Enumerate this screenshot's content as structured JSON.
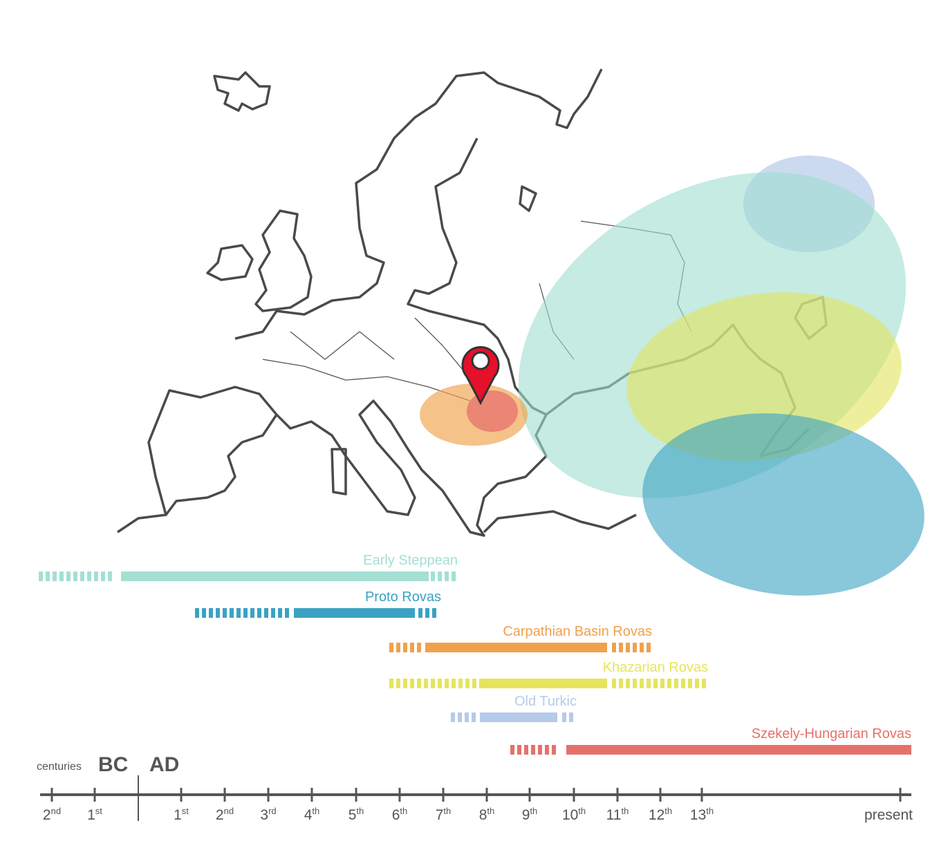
{
  "timelines": [
    {
      "label": "Early Steppean",
      "color": "#a3e0d3"
    },
    {
      "label": "Proto Rovas",
      "color": "#3ba1c3"
    },
    {
      "label": "Carpathian Basin Rovas",
      "color": "#f0a14c"
    },
    {
      "label": "Khazarian Rovas",
      "color": "#e6e45c"
    },
    {
      "label": "Old Turkic",
      "color": "#b6caea"
    },
    {
      "label": "Szekely-Hungarian Rovas",
      "color": "#e5716b"
    }
  ],
  "axis": {
    "unit": "centuries",
    "bc": "BC",
    "ad": "AD",
    "ticks": [
      {
        "number": "2",
        "suffix": "nd"
      },
      {
        "number": "1",
        "suffix": "st"
      },
      {
        "number": "1",
        "suffix": "st"
      },
      {
        "number": "2",
        "suffix": "nd"
      },
      {
        "number": "3",
        "suffix": "rd"
      },
      {
        "number": "4",
        "suffix": "th"
      },
      {
        "number": "5",
        "suffix": "th"
      },
      {
        "number": "6",
        "suffix": "th"
      },
      {
        "number": "7",
        "suffix": "th"
      },
      {
        "number": "8",
        "suffix": "th"
      },
      {
        "number": "9",
        "suffix": "th"
      },
      {
        "number": "10",
        "suffix": "th"
      },
      {
        "number": "11",
        "suffix": "th"
      },
      {
        "number": "12",
        "suffix": "th"
      },
      {
        "number": "13",
        "suffix": "th"
      }
    ],
    "end": "present"
  }
}
